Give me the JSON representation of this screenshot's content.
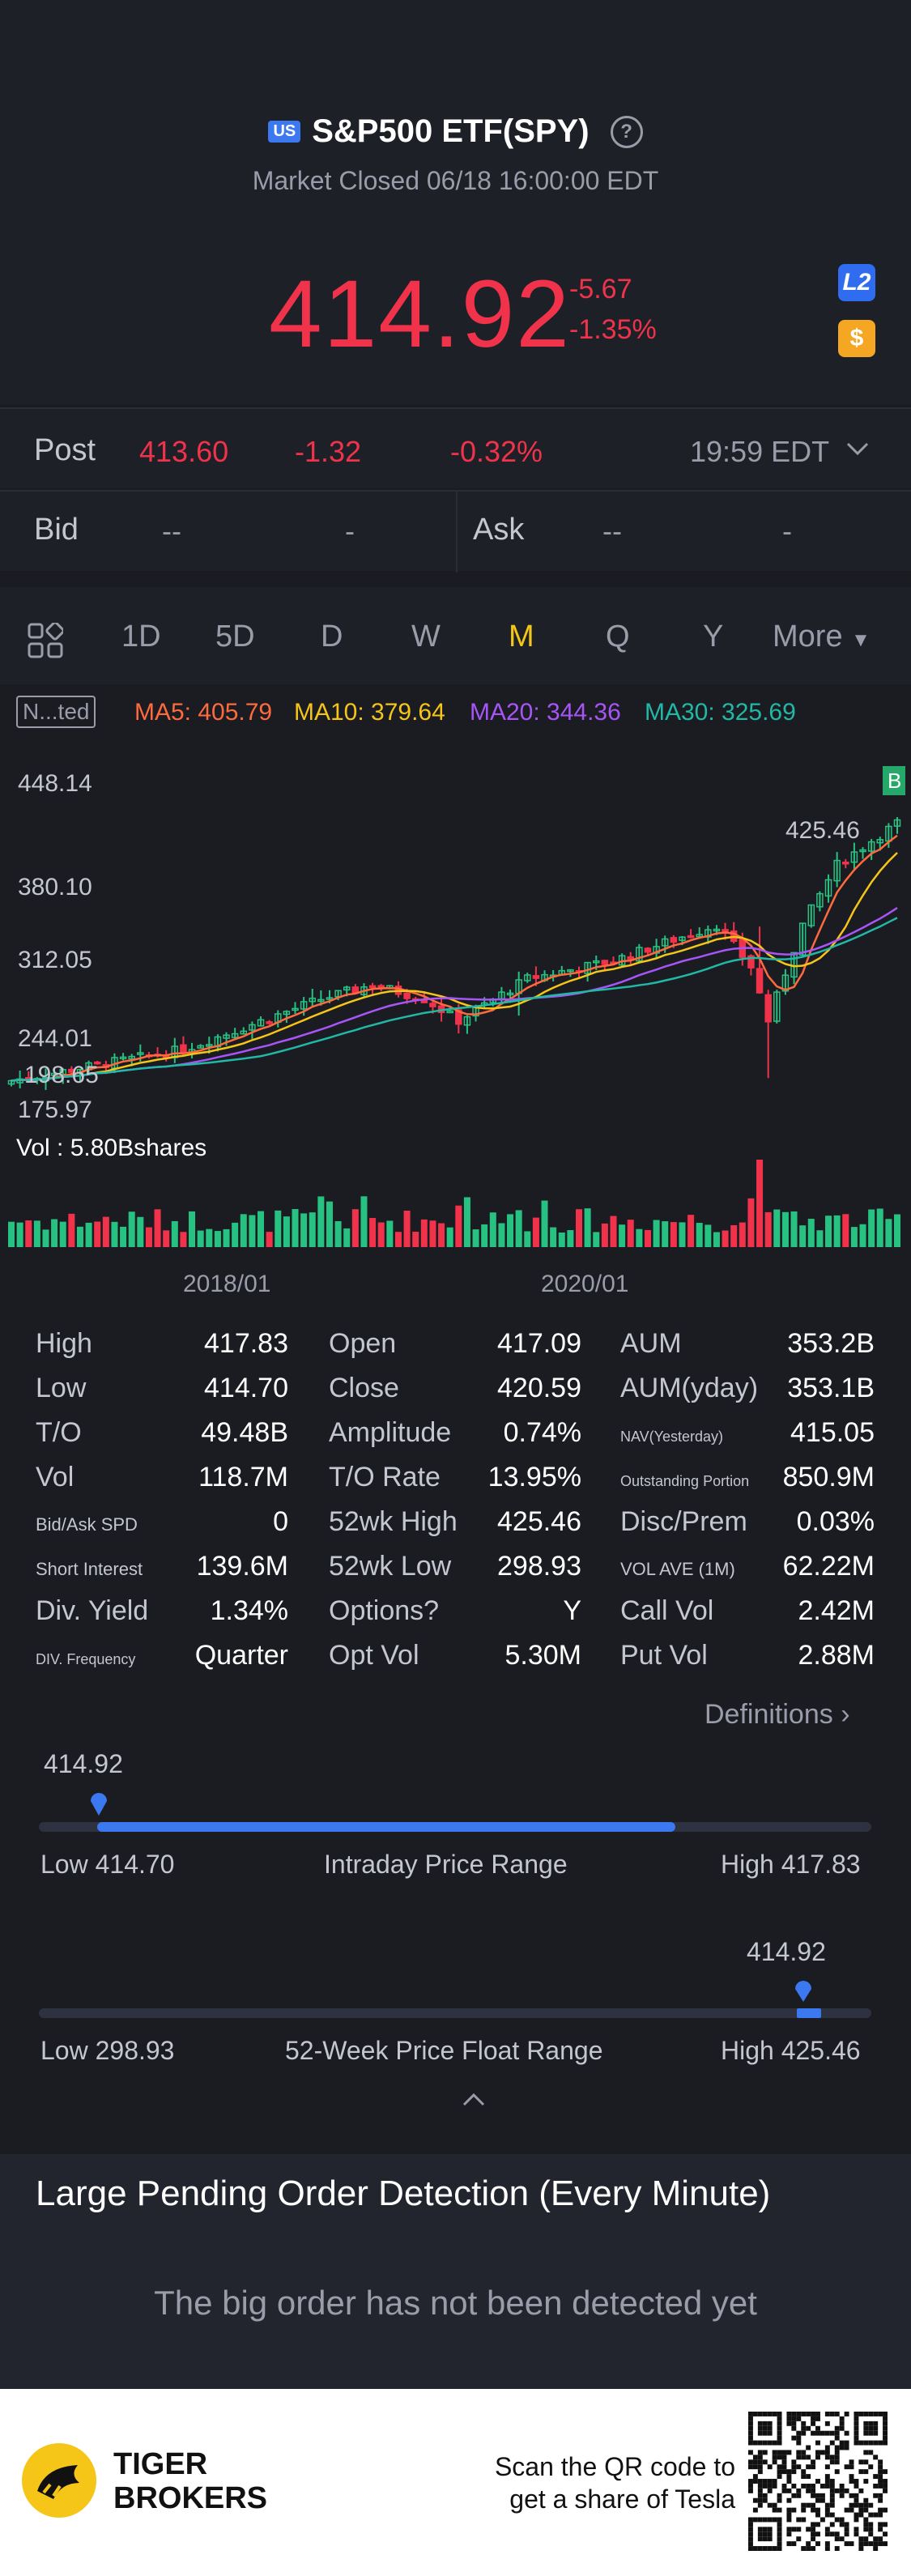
{
  "header": {
    "market_badge": "US",
    "title": "S&P500 ETF(SPY)",
    "status": "Market Closed 06/18 16:00:00 EDT",
    "price": "414.92",
    "change": "-5.67",
    "change_pct": "-1.35%",
    "l2_badge": "L2",
    "dollar_badge": "$"
  },
  "post": {
    "label": "Post",
    "price": "413.60",
    "change": "-1.32",
    "change_pct": "-0.32%",
    "time": "19:59 EDT"
  },
  "bid_ask": {
    "bid_label": "Bid",
    "bid_price": "--",
    "bid_size": "-",
    "ask_label": "Ask",
    "ask_price": "--",
    "ask_size": "-"
  },
  "tabs": {
    "items": [
      "1D",
      "5D",
      "D",
      "W",
      "M",
      "Q",
      "Y"
    ],
    "active": "M",
    "more": "More"
  },
  "ma": {
    "tag": "N...ted",
    "ma5": "MA5: 405.79",
    "ma10": "MA10: 379.64",
    "ma20": "MA20: 344.36",
    "ma30": "MA30: 325.69"
  },
  "chart_data": {
    "type": "candlestick",
    "y_ticks": [
      "448.14",
      "380.10",
      "312.05",
      "244.01",
      "175.97"
    ],
    "annotations": [
      "425.46",
      "198.65",
      "B"
    ],
    "x_ticks": [
      "2018/01",
      "2020/01"
    ],
    "volume_label": "Vol  : 5.80Bshares"
  },
  "stats": {
    "col1": [
      {
        "label": "High",
        "value": "417.83"
      },
      {
        "label": "Low",
        "value": "414.70"
      },
      {
        "label": "T/O",
        "value": "49.48B"
      },
      {
        "label": "Vol",
        "value": "118.7M"
      },
      {
        "label": "Bid/Ask SPD",
        "value": "0"
      },
      {
        "label": "Short Interest",
        "value": "139.6M"
      },
      {
        "label": "Div. Yield",
        "value": "1.34%"
      },
      {
        "label": "DIV. Frequency",
        "value": "Quarter"
      }
    ],
    "col2": [
      {
        "label": "Open",
        "value": "417.09"
      },
      {
        "label": "Close",
        "value": "420.59"
      },
      {
        "label": "Amplitude",
        "value": "0.74%"
      },
      {
        "label": "T/O Rate",
        "value": "13.95%"
      },
      {
        "label": "52wk High",
        "value": "425.46"
      },
      {
        "label": "52wk Low",
        "value": "298.93"
      },
      {
        "label": "Options?",
        "value": "Y"
      },
      {
        "label": "Opt Vol",
        "value": "5.30M"
      }
    ],
    "col3": [
      {
        "label": "AUM",
        "value": "353.2B"
      },
      {
        "label": "AUM(yday)",
        "value": "353.1B"
      },
      {
        "label": "NAV(Yesterday)",
        "value": "415.05"
      },
      {
        "label": "Outstanding Portion",
        "value": "850.9M"
      },
      {
        "label": "Disc/Prem",
        "value": "0.03%"
      },
      {
        "label": "VOL AVE (1M)",
        "value": "62.22M"
      },
      {
        "label": "Call Vol",
        "value": "2.42M"
      },
      {
        "label": "Put Vol",
        "value": "2.88M"
      }
    ],
    "definitions": "Definitions"
  },
  "intraday_range": {
    "current": "414.92",
    "low": "Low 414.70",
    "title": "Intraday Price Range",
    "high": "High 417.83",
    "marker_fraction": 0.07,
    "fill_from": 0.07,
    "fill_to": 0.77
  },
  "week52_range": {
    "current": "414.92",
    "low": "Low 298.93",
    "title": "52-Week Price Float Range",
    "high": "High 425.46",
    "marker_fraction": 0.92
  },
  "pending": {
    "title": "Large Pending Order Detection (Every Minute)",
    "message": "The big order has not been detected yet"
  },
  "footer": {
    "brand_line1": "TIGER",
    "brand_line2": "BROKERS",
    "promo_line1": "Scan the QR code to",
    "promo_line2": "get a share of Tesla"
  },
  "colors": {
    "up": "#27c281",
    "down": "#f0334b",
    "ma5": "#ff6a3d",
    "ma10": "#f5c518",
    "ma20": "#a855f7",
    "ma30": "#22b8a6",
    "accent": "#3c78f0"
  }
}
